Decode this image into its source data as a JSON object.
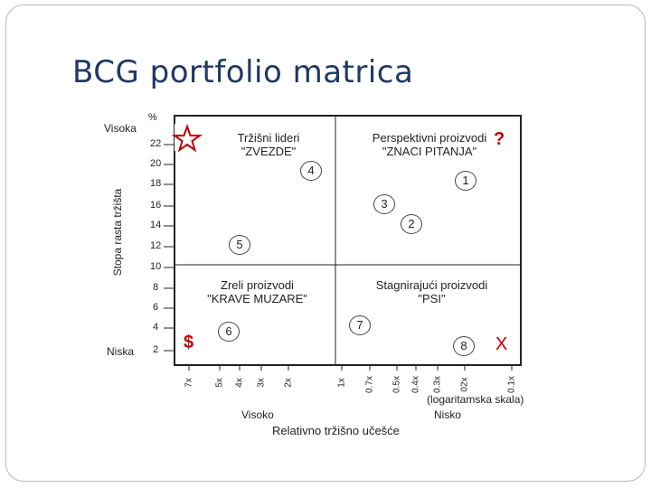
{
  "slide": {
    "title": "BCG portfolio matrica"
  },
  "axes": {
    "y_label": "Stopa rasta tržišta",
    "y_unit": "%",
    "y_high": "Visoka",
    "y_low": "Niska",
    "y_ticks": [
      "22",
      "20",
      "18",
      "16",
      "14",
      "12",
      "10",
      "8",
      "6",
      "4",
      "2"
    ],
    "x_label": "Relativno tržišno učešće",
    "x_high": "Visoko",
    "x_low": "Nisko",
    "x_scale_note": "(logaritamska skala)",
    "x_ticks": [
      "7x",
      "5x",
      "4x",
      "3x",
      "2x",
      "1x",
      "0.7x",
      "0.5x",
      "0.4x",
      "0.3x",
      "02x",
      "0.1x"
    ]
  },
  "quadrants": {
    "stars": {
      "line1": "Tržišni lideri",
      "line2": "\"ZVEZDE\"",
      "icon": "star-icon"
    },
    "question": {
      "line1": "Perspektivni proizvodi",
      "line2": "\"ZNACI PITANJA\"",
      "symbol": "?"
    },
    "cows": {
      "line1": "Zreli proizvodi",
      "line2": "\"KRAVE MUZARE\"",
      "symbol": "$"
    },
    "dogs": {
      "line1": "Stagnirajući proizvodi",
      "line2": "\"PSI\"",
      "symbol": "X"
    }
  },
  "products": [
    "1",
    "2",
    "3",
    "4",
    "5",
    "6",
    "7",
    "8"
  ],
  "colors": {
    "accent": "#c00000",
    "title": "#1f3864"
  }
}
